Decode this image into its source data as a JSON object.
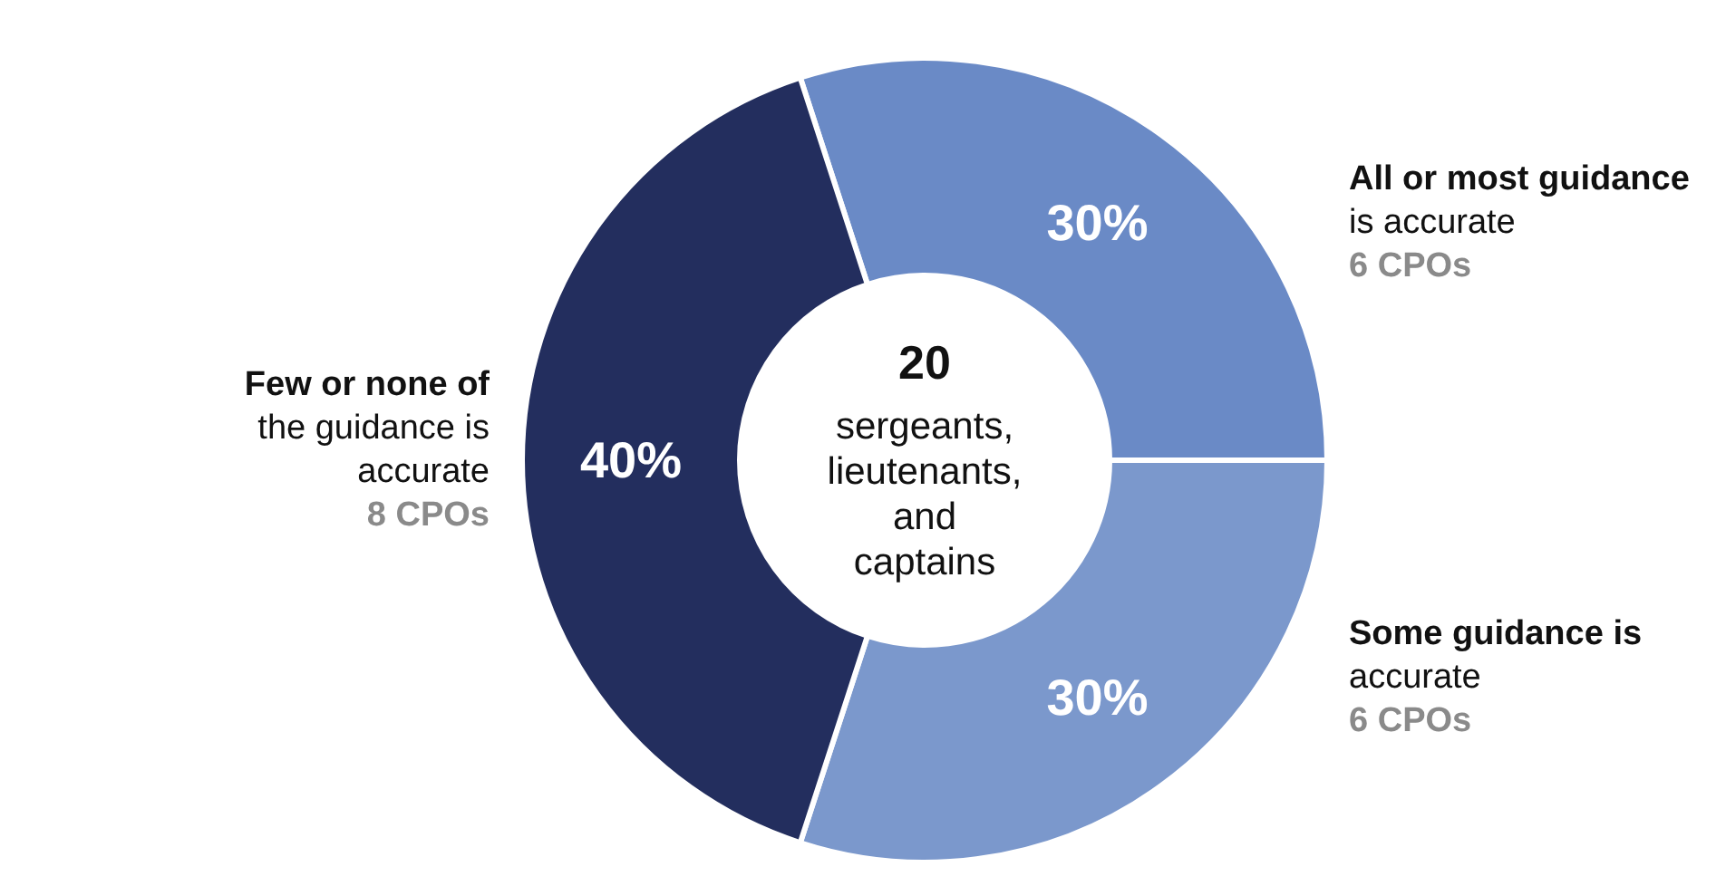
{
  "chart_data": {
    "type": "donut",
    "categories": [
      "All or most guidance is accurate",
      "Some guidance is accurate",
      "Few or none of the guidance is accurate"
    ],
    "values": [
      30,
      30,
      40
    ],
    "colors": [
      "#6a8ac6",
      "#7b98cc",
      "#232e5e"
    ],
    "value_labels": [
      "30%",
      "30%",
      "40%"
    ],
    "annotations": [
      "6 CPOs",
      "6 CPOs",
      "8 CPOs",
      "20",
      "sergeants, lieutenants, and captains"
    ]
  }
}
